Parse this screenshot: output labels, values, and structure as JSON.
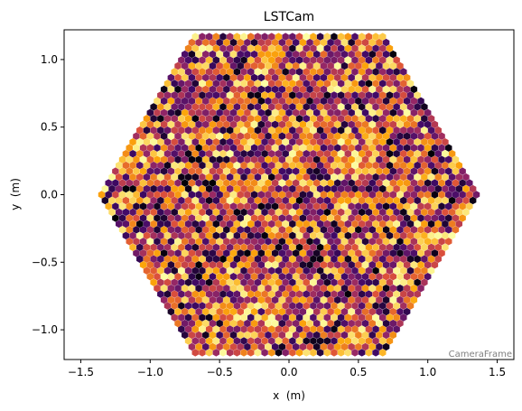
{
  "chart_data": {
    "type": "heatmap",
    "title": "LSTCam",
    "xlabel": "x  (m)",
    "ylabel": "y  (m)",
    "xlim": [
      -1.62,
      1.62
    ],
    "ylim": [
      -1.22,
      1.22
    ],
    "x_ticks": [
      -1.5,
      -1.0,
      -0.5,
      0.0,
      0.5,
      1.0,
      1.5
    ],
    "x_tick_labels": [
      "−1.5",
      "−1.0",
      "−0.5",
      "0.0",
      "0.5",
      "1.0",
      "1.5"
    ],
    "y_ticks": [
      1.0,
      0.5,
      0.0,
      -0.5,
      -1.0
    ],
    "y_tick_labels": [
      "1.0",
      "0.5",
      "0.0",
      "−0.5",
      "−1.0"
    ],
    "grid": false,
    "colormap": "inferno",
    "colormap_stops": [
      "#000004",
      "#420a68",
      "#932667",
      "#dd513a",
      "#fca50a",
      "#fcffa4"
    ],
    "camera_extent_m": 1.18,
    "pixel_pitch_m": 0.05,
    "frame_label": "CameraFrame"
  }
}
